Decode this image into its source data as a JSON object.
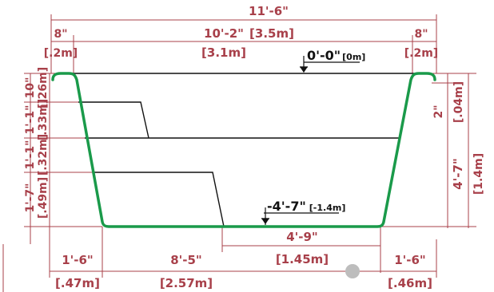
{
  "colors": {
    "dimension": "#a8404a",
    "shell": "#1a9a4a",
    "line": "#111111",
    "marker": "#bdbdbd"
  },
  "top": {
    "overall": "11'-6\"",
    "left_lip_ft": "8\"",
    "left_lip_m": "[.2m]",
    "center_ft": "10'-2\"",
    "center_m_inline": "[3.5m]",
    "center_m": "[3.1m]",
    "right_lip_ft": "8\"",
    "right_lip_m": "[.2m]"
  },
  "elevations": {
    "top_ft": "0'-0\"",
    "top_m": "[0m]",
    "bottom_ft": "-4'-7\"",
    "bottom_m": "[-1.4m]"
  },
  "left": {
    "step1_ft": "10\"",
    "step1_m": "[.26m]",
    "step2_ft": "1'-1\"",
    "step2_m": "[.33m]",
    "step3_ft": "1'-1\"",
    "step3_m": "[.32m]",
    "step4_ft": "1'-7\"",
    "step4_m": "[.49m]"
  },
  "right": {
    "lip_ft": "2\"",
    "lip_m": "[.04m]",
    "depth_ft": "4'-7\"",
    "depth_m": "[1.4m]"
  },
  "bottom": {
    "floor_ft": "4'-9\"",
    "floor_m": "[1.45m]",
    "left_slope_ft": "1'-6\"",
    "left_slope_m": "[.47m]",
    "center_ft": "8'-5\"",
    "center_m": "[2.57m]",
    "right_slope_ft": "1'-6\"",
    "right_slope_m": "[.46m]"
  }
}
